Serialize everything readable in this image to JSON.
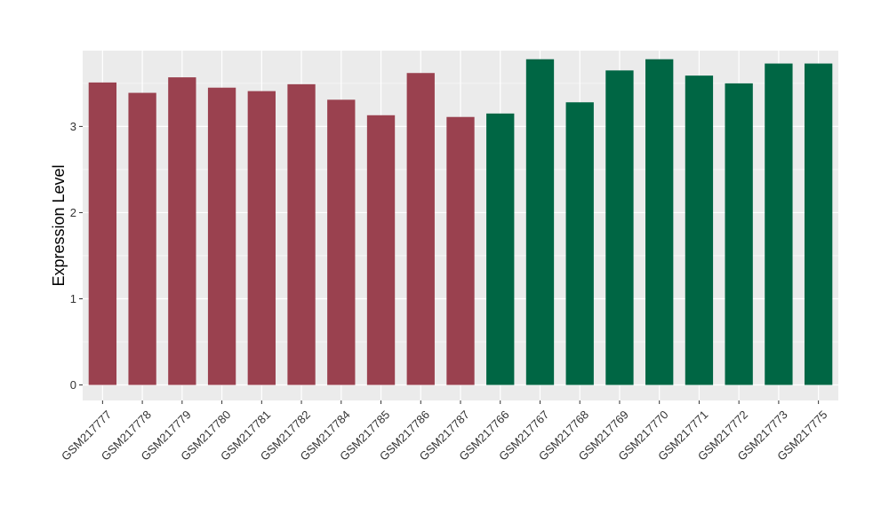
{
  "chart_data": {
    "type": "bar",
    "ylabel": "Expression Level",
    "xlabel": "",
    "title": "",
    "ylim": [
      -0.18,
      3.88
    ],
    "yticks": [
      0,
      1,
      2,
      3
    ],
    "grid": true,
    "categories": [
      "GSM217777",
      "GSM217778",
      "GSM217779",
      "GSM217780",
      "GSM217781",
      "GSM217782",
      "GSM217784",
      "GSM217785",
      "GSM217786",
      "GSM217787",
      "GSM217766",
      "GSM217767",
      "GSM217768",
      "GSM217769",
      "GSM217770",
      "GSM217771",
      "GSM217772",
      "GSM217773",
      "GSM217775"
    ],
    "values": [
      3.51,
      3.39,
      3.57,
      3.45,
      3.41,
      3.49,
      3.31,
      3.13,
      3.62,
      3.11,
      3.15,
      3.78,
      3.28,
      3.65,
      3.78,
      3.59,
      3.5,
      3.73,
      3.73
    ],
    "colors": [
      "#9a414f",
      "#9a414f",
      "#9a414f",
      "#9a414f",
      "#9a414f",
      "#9a414f",
      "#9a414f",
      "#9a414f",
      "#9a414f",
      "#9a414f",
      "#006644",
      "#006644",
      "#006644",
      "#006644",
      "#006644",
      "#006644",
      "#006644",
      "#006644",
      "#006644"
    ],
    "panel_background": "#ebebeb",
    "grid_color": "#ffffff"
  }
}
